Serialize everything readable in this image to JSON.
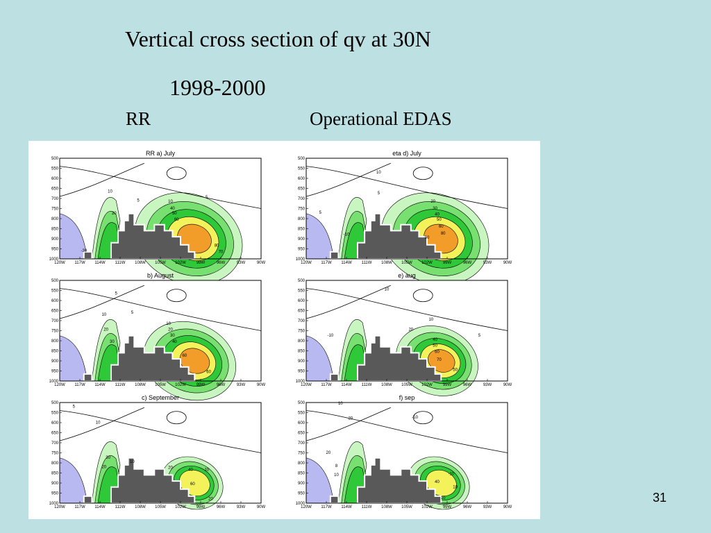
{
  "slide": {
    "title": "Vertical cross section of qv at 30N",
    "years": "1998-2000",
    "column_left": "RR",
    "column_right": "Operational EDAS",
    "page_number": "31"
  },
  "colors": {
    "background": "#bde0e3",
    "terrain": "#595959",
    "negative_fill": "#b9b9f2",
    "band_light": "#c8f5c0",
    "band_mid": "#78e070",
    "band_strong": "#2ec838",
    "band_yellow": "#f4f25a",
    "band_orange": "#f29c2a"
  },
  "panels": [
    {
      "title": "RR a) July",
      "contour_labels": [
        "10",
        "5",
        "20",
        "-30",
        "10",
        "40",
        "50",
        "60",
        "80",
        "70",
        "5"
      ]
    },
    {
      "title": "eta d) July",
      "contour_labels": [
        "10",
        "5",
        "-10",
        "5",
        "20",
        "30",
        "40",
        "50",
        "60",
        "80",
        "90"
      ]
    },
    {
      "title": "b) August",
      "contour_labels": [
        "5",
        "10",
        "20",
        "30",
        "5",
        "10",
        "20",
        "30",
        "40",
        "60",
        "60"
      ]
    },
    {
      "title": "e) aug",
      "contour_labels": [
        "10",
        "5",
        "10",
        "-10",
        "20",
        "40",
        "50",
        "60",
        "70",
        "50"
      ]
    },
    {
      "title": "c) September",
      "contour_labels": [
        "5",
        "10",
        "20",
        "30",
        "10",
        "20",
        "40",
        "60",
        "10",
        "20"
      ]
    },
    {
      "title": "f) sep",
      "contour_labels": [
        "10",
        "20",
        "20",
        "-10",
        "-10",
        "10",
        "8",
        "10",
        "40",
        "10"
      ]
    }
  ],
  "y_ticks": [
    "500",
    "550",
    "600",
    "650",
    "700",
    "750",
    "800",
    "850",
    "900",
    "950",
    "1000"
  ],
  "x_ticks": [
    "120W",
    "117W",
    "114W",
    "111W",
    "108W",
    "105W",
    "102W",
    "99W",
    "96W",
    "93W",
    "90W"
  ]
}
